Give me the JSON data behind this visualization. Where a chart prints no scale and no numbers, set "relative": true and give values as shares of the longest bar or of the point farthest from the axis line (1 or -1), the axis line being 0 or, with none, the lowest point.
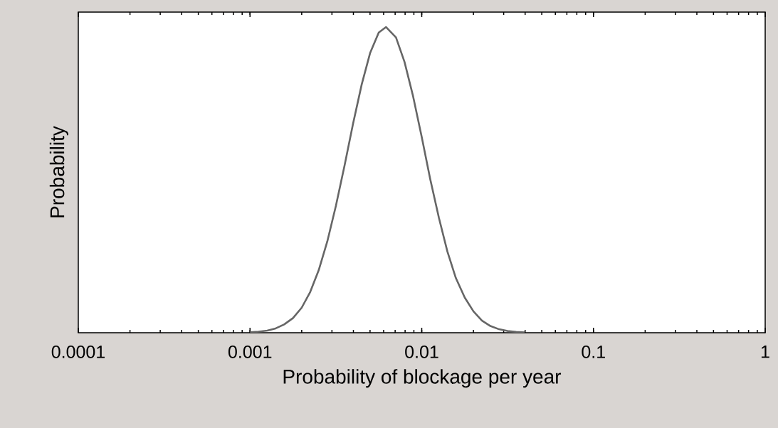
{
  "chart_data": {
    "type": "line",
    "xlabel": "Probability of blockage per year",
    "ylabel": "Probability",
    "log": "x",
    "relative": true,
    "xlim": [
      0.0001,
      1
    ],
    "xticks": [
      0.0001,
      0.001,
      0.01,
      0.1,
      1
    ],
    "x": [
      0.001,
      0.00112,
      0.00126,
      0.00141,
      0.00158,
      0.00178,
      0.002,
      0.00224,
      0.00251,
      0.00282,
      0.00316,
      0.00355,
      0.00398,
      0.00447,
      0.00501,
      0.00562,
      0.0062,
      0.00708,
      0.00794,
      0.00891,
      0.01,
      0.0112,
      0.0126,
      0.0141,
      0.0158,
      0.0178,
      0.02,
      0.0224,
      0.0251,
      0.0282,
      0.0316,
      0.0355,
      0.0398
    ],
    "series": [
      {
        "color": "#666666",
        "values": [
          0.0015,
          0.0034,
          0.0071,
          0.0142,
          0.027,
          0.048,
          0.082,
          0.133,
          0.204,
          0.299,
          0.414,
          0.546,
          0.683,
          0.812,
          0.916,
          0.982,
          1,
          0.966,
          0.886,
          0.773,
          0.64,
          0.503,
          0.375,
          0.266,
          0.179,
          0.115,
          0.07,
          0.04,
          0.022,
          0.0114,
          0.0056,
          0.0026,
          0.0012
        ]
      }
    ]
  }
}
